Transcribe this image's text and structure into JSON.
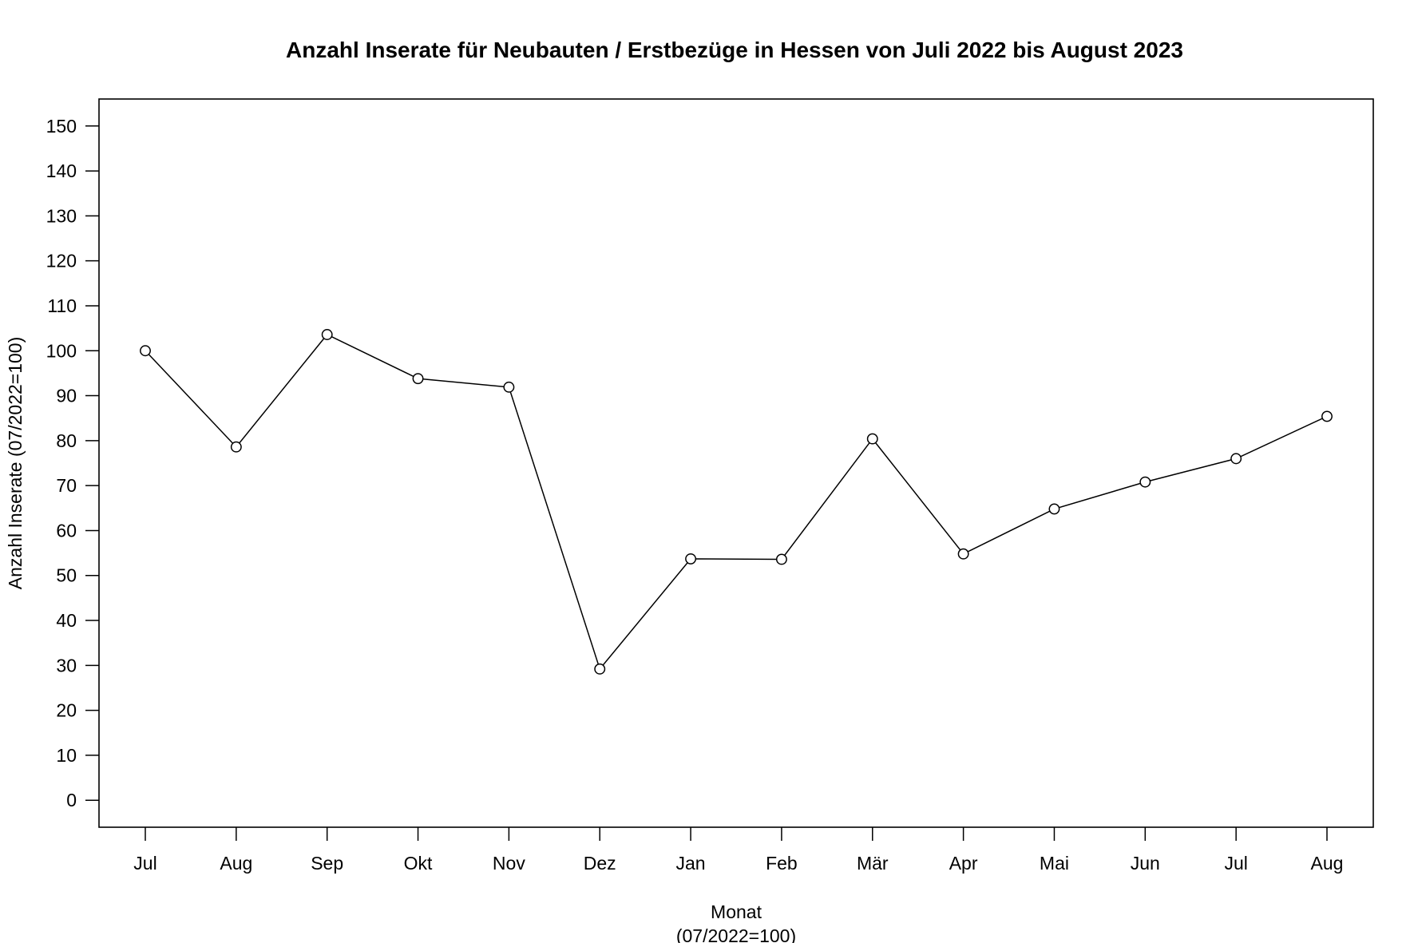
{
  "chart_data": {
    "type": "line",
    "title": "Anzahl Inserate für Neubauten / Erstbezüge in Hessen von Juli 2022 bis August 2023",
    "xlabel": "Monat",
    "xlabel_line2": "(07/2022=100)",
    "ylabel": "Anzahl Inserate (07/2022=100)",
    "categories": [
      "Jul",
      "Aug",
      "Sep",
      "Okt",
      "Nov",
      "Dez",
      "Jan",
      "Feb",
      "Mär",
      "Apr",
      "Mai",
      "Jun",
      "Jul",
      "Aug"
    ],
    "series": [
      {
        "values": [
          100,
          78.6,
          103.6,
          93.8,
          91.9,
          29.2,
          53.7,
          53.6,
          80.4,
          54.8,
          64.8,
          70.8,
          76.0,
          85.4
        ]
      }
    ],
    "yticks": [
      0,
      10,
      20,
      30,
      40,
      50,
      60,
      70,
      80,
      90,
      100,
      110,
      120,
      130,
      140,
      150
    ],
    "ylim": [
      -6,
      156
    ],
    "grid": false,
    "legend": "none",
    "colors": {
      "line": "#000000",
      "marker_fill": "#ffffff",
      "marker_stroke": "#000000",
      "frame": "#000000"
    }
  }
}
